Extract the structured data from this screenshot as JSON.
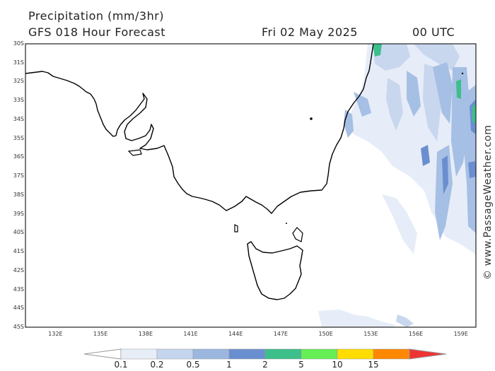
{
  "header": {
    "title": "Precipitation (mm/3hr)",
    "subtitle": "GFS 018 Hour Forecast",
    "date": "Fri 02 May 2025",
    "time": "00 UTC"
  },
  "credit": "© www.PassageWeather.com",
  "map": {
    "lat_range": [
      -45,
      -30
    ],
    "lon_range": [
      130,
      160
    ],
    "lat_ticks": [
      "30S",
      "31S",
      "32S",
      "33S",
      "34S",
      "35S",
      "36S",
      "37S",
      "38S",
      "39S",
      "40S",
      "41S",
      "42S",
      "43S",
      "44S",
      "45S"
    ],
    "lon_ticks": [
      "132E",
      "135E",
      "138E",
      "141E",
      "144E",
      "147E",
      "150E",
      "153E",
      "156E",
      "159E"
    ]
  },
  "legend": {
    "labels": [
      "0.1",
      "0.2",
      "0.5",
      "1",
      "2",
      "5",
      "10",
      "15"
    ],
    "colors": [
      "#e8eef8",
      "#c4d5ee",
      "#9bb7e0",
      "#6a8fd0",
      "#3cbf8a",
      "#66ee55",
      "#ffdd00",
      "#ff8800",
      "#ee3333"
    ]
  }
}
